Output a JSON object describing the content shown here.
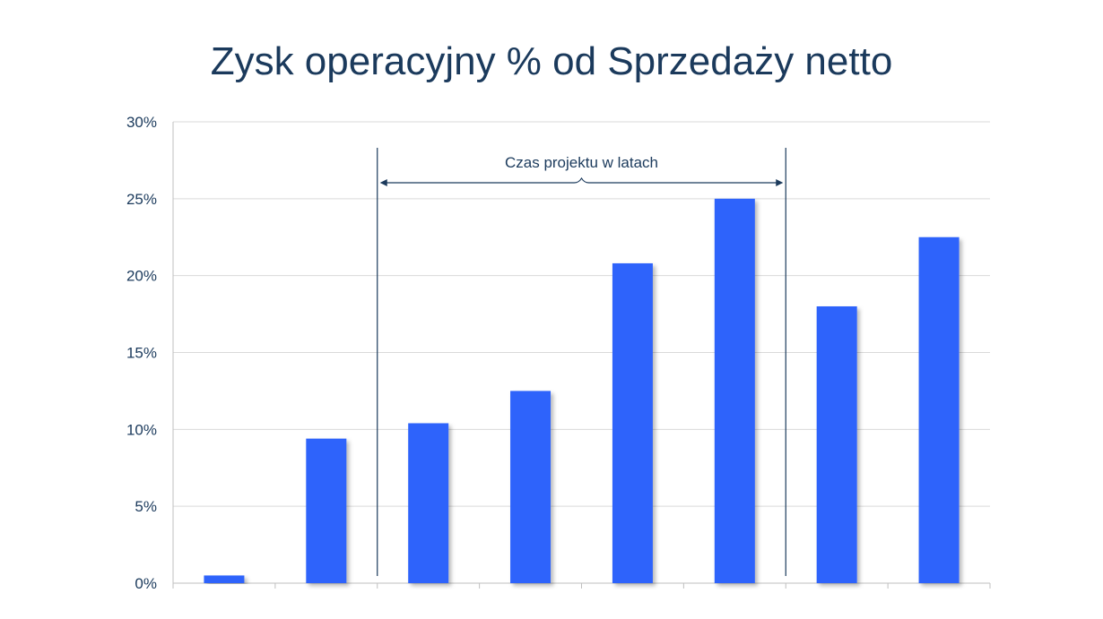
{
  "chart_data": {
    "type": "bar",
    "title": "Zysk operacyjny % od Sprzedaży netto",
    "xlabel": "",
    "ylabel": "",
    "categories": [
      "",
      "",
      "",
      "",
      "",
      "",
      "",
      ""
    ],
    "values": [
      0.5,
      9.4,
      10.4,
      12.5,
      20.8,
      25.0,
      18.0,
      22.5
    ],
    "y_unit": "%",
    "ylim": [
      0,
      30
    ],
    "yticks": [
      0,
      5,
      10,
      15,
      20,
      25,
      30
    ],
    "ytick_labels": [
      "0%",
      "5%",
      "10%",
      "15%",
      "20%",
      "25%",
      "30%"
    ],
    "grid": true,
    "bar_color": "#2f63fb",
    "annotation": {
      "label": "Czas projektu w latach",
      "start_boundary_index": 2,
      "end_boundary_index": 6
    }
  },
  "colors": {
    "title": "#1b3a5c",
    "axis_text": "#1b3a5c",
    "gridline": "#d9d9d9",
    "marker_line": "#1b3a5c"
  }
}
